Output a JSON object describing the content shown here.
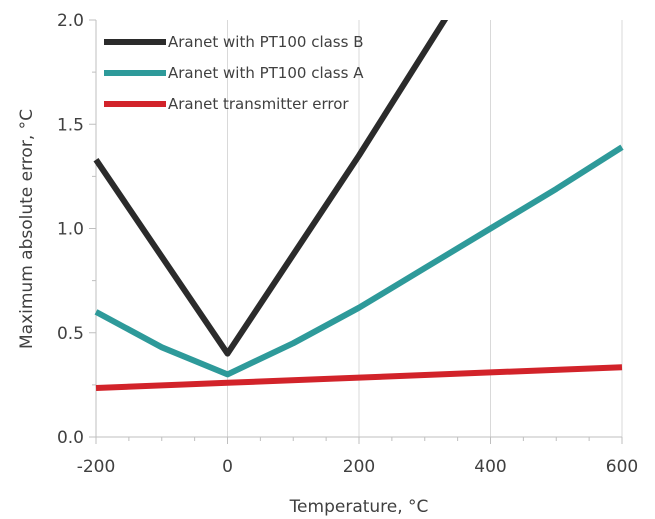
{
  "chart_data": {
    "type": "line",
    "xlabel": "Temperature, °C",
    "ylabel": "Maximum absolute error, °C",
    "xlim": [
      -200,
      600
    ],
    "ylim": [
      0,
      2.0
    ],
    "xticks": [
      -200,
      0,
      200,
      400,
      600
    ],
    "yticks": [
      0,
      0.5,
      1.0,
      1.5,
      2.0
    ],
    "xtick_labels": [
      "-200",
      "0",
      "200",
      "400",
      "600"
    ],
    "ytick_labels": [
      "0.0",
      "0.5",
      "1.0",
      "1.5",
      "2.0"
    ],
    "grid": "vertical",
    "legend_position": "top-left",
    "series": [
      {
        "name": "Aranet with PT100 class B",
        "color": "#2b2b2b",
        "x": [
          -200,
          0,
          200,
          340
        ],
        "y": [
          1.33,
          0.4,
          1.35,
          2.05
        ]
      },
      {
        "name": "Aranet with PT100 class A",
        "color": "#2e9a9a",
        "x": [
          -200,
          -100,
          0,
          100,
          200,
          300,
          400,
          500,
          600
        ],
        "y": [
          0.6,
          0.43,
          0.3,
          0.45,
          0.62,
          0.81,
          1.0,
          1.19,
          1.39
        ]
      },
      {
        "name": "Aranet transmitter error",
        "color": "#d2232a",
        "x": [
          -200,
          0,
          200,
          400,
          600
        ],
        "y": [
          0.235,
          0.26,
          0.285,
          0.31,
          0.335
        ]
      }
    ]
  }
}
